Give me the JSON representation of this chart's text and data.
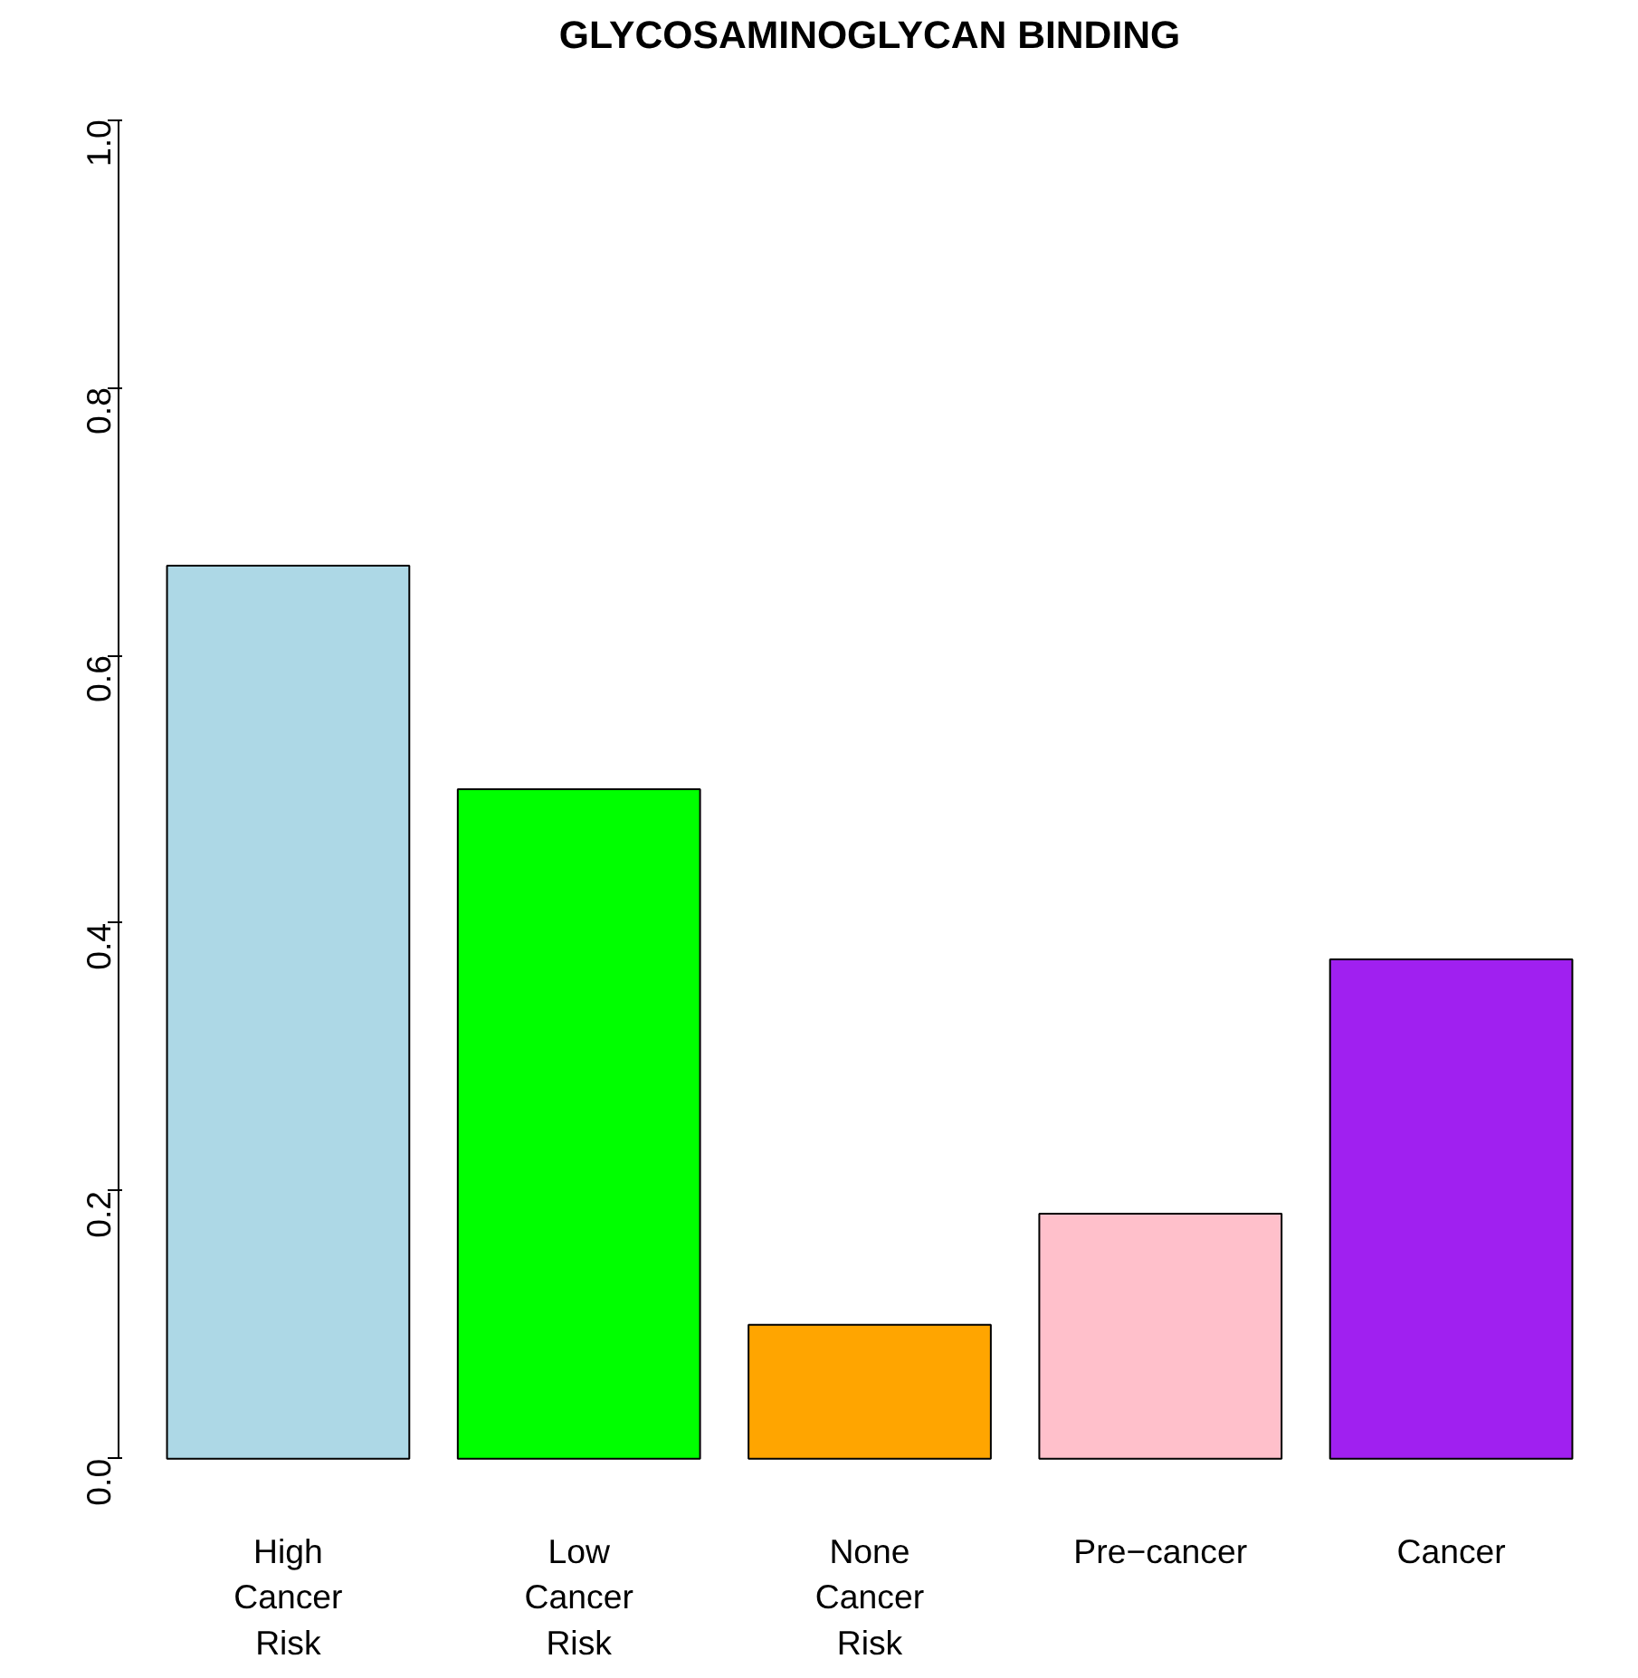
{
  "chart_data": {
    "type": "bar",
    "title": "GLYCOSAMINOGLYCAN BINDING",
    "categories": [
      "High\nCancer\nRisk",
      "Low\nCancer\nRisk",
      "None\nCancer\nRisk",
      "Pre−cancer",
      "Cancer"
    ],
    "values": [
      0.667,
      0.5,
      0.1,
      0.183,
      0.373
    ],
    "colors": [
      "#add8e6",
      "#00ff00",
      "#ffa500",
      "#ffc0cb",
      "#a020f0"
    ],
    "ylim": [
      0,
      1
    ],
    "yticks": [
      {
        "value": 0,
        "label": "0.0"
      },
      {
        "value": 0.2,
        "label": "0.2"
      },
      {
        "value": 0.4,
        "label": "0.4"
      },
      {
        "value": 0.6,
        "label": "0.6"
      },
      {
        "value": 0.8,
        "label": "0.8"
      },
      {
        "value": 1,
        "label": "1.0"
      }
    ],
    "grid": false
  }
}
